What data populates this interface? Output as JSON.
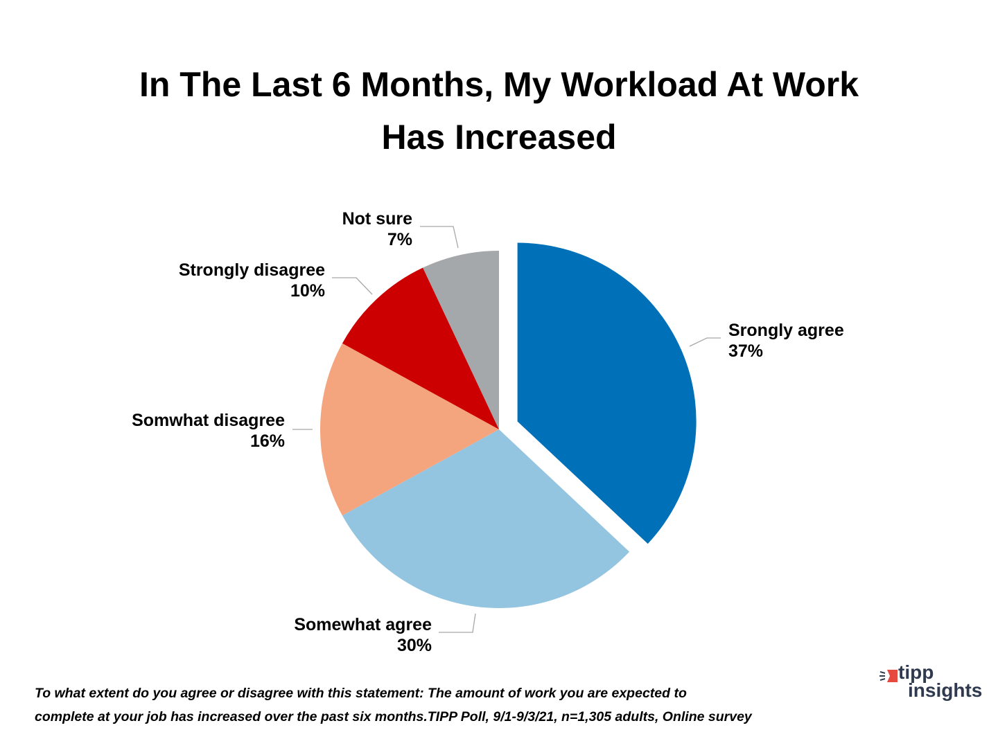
{
  "title_lines": [
    "In The Last 6 Months, My Workload At Work",
    "Has Increased"
  ],
  "chart_data": {
    "type": "pie",
    "title": "In The Last 6 Months, My Workload At Work Has Increased",
    "categories": [
      "Srongly agree",
      "Somewhat agree",
      "Somwhat disagree",
      "Strongly disagree",
      "Not sure"
    ],
    "values": [
      37,
      30,
      16,
      10,
      7
    ],
    "unit": "%",
    "colors": [
      "#0070b8",
      "#93c4e0",
      "#f4a57e",
      "#cc0000",
      "#a5a8aa"
    ],
    "exploded": [
      "Srongly agree"
    ],
    "start_angle_deg": 0,
    "direction": "clockwise",
    "legend": "none (data labels with leader lines)"
  },
  "labels": [
    {
      "name": "Srongly agree",
      "value": "37%"
    },
    {
      "name": "Somewhat agree",
      "value": "30%"
    },
    {
      "name": "Somwhat disagree",
      "value": "16%"
    },
    {
      "name": "Strongly disagree",
      "value": "10%"
    },
    {
      "name": "Not sure",
      "value": "7%"
    }
  ],
  "footnote_lines": [
    "To what extent do you agree or disagree with this statement: The amount of work you are expected to",
    "complete at your job has increased over the past six months.TIPP Poll, 9/1-9/3/21, n=1,305 adults, Online survey"
  ],
  "logo": {
    "line1": "tipp",
    "line2": "insights",
    "icon": "megaphone-flag-icon",
    "accent": "#e8493f",
    "text_color": "#2f3a4f"
  }
}
